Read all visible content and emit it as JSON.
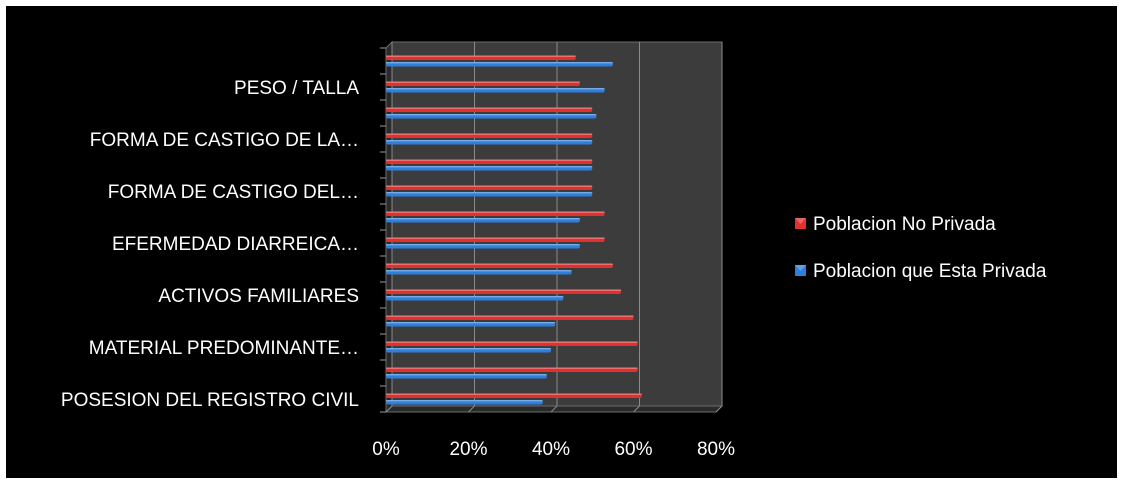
{
  "chart_data": {
    "type": "bar",
    "orientation": "horizontal",
    "categories": [
      "POSESION DEL REGISTRO CIVIL",
      "",
      "MATERIAL PREDOMINANTE…",
      "",
      "ACTIVOS FAMILIARES",
      "",
      "EFERMEDAD DIARREICA…",
      "",
      "FORMA DE CASTIGO DEL…",
      "",
      "FORMA DE CASTIGO DE LA…",
      "",
      "PESO / TALLA",
      ""
    ],
    "series": [
      {
        "name": "Poblacion No Privada",
        "color": "#e0312f",
        "values": [
          62,
          61,
          61,
          60,
          57,
          55,
          53,
          53,
          50,
          50,
          50,
          50,
          47,
          46
        ]
      },
      {
        "name": "Poblacion que Esta Privada",
        "color": "#2e7fdb",
        "values": [
          38,
          39,
          40,
          41,
          43,
          45,
          47,
          47,
          50,
          50,
          50,
          51,
          53,
          55
        ]
      }
    ],
    "xlim": [
      0,
      80
    ],
    "xticks": [
      "0%",
      "20%",
      "40%",
      "60%",
      "80%"
    ],
    "grid": true,
    "legend_position": "right",
    "title": "",
    "xlabel": "",
    "ylabel": ""
  }
}
